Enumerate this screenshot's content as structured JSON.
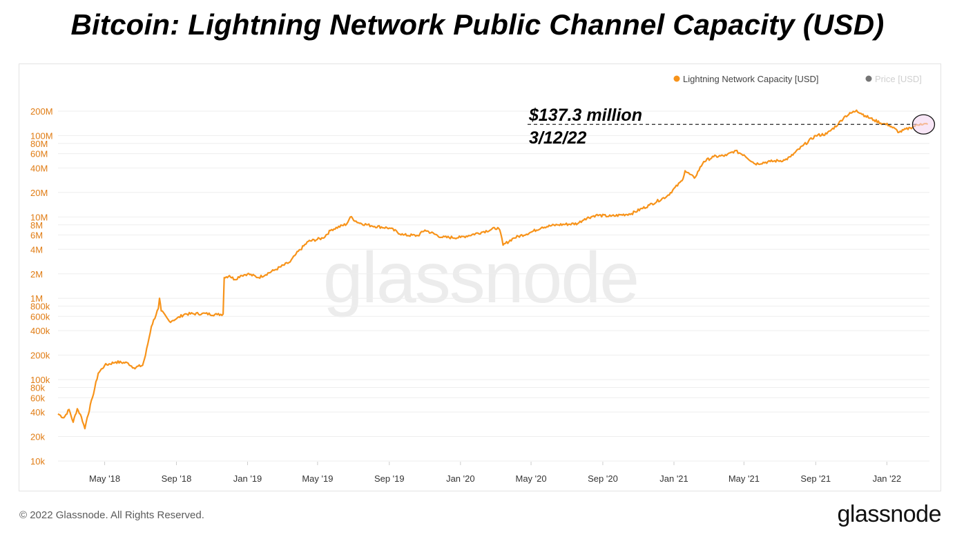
{
  "page": {
    "title": "Bitcoin: Lightning Network Public Channel Capacity (USD)",
    "copyright": "© 2022 Glassnode. All Rights Reserved.",
    "brand": "glassnode",
    "watermark": "glassnode"
  },
  "legend": {
    "items": [
      {
        "label": "Lightning Network Capacity [USD]",
        "color": "#f7931a",
        "active": true
      },
      {
        "label": "Price [USD]",
        "color": "#757575",
        "active": false
      }
    ]
  },
  "annotation": {
    "value_label": "$137.3 million",
    "date_label": "3/12/22",
    "value": 137300000,
    "date": "2022-03-12"
  },
  "colors": {
    "series": "#f7931a",
    "axis_text": "#e07b12",
    "x_axis_text": "#333333",
    "grid": "#eeeeee",
    "highlight_fill": "#f3d6f0"
  },
  "chart_data": {
    "type": "line",
    "title": "Bitcoin: Lightning Network Public Channel Capacity (USD)",
    "yscale": "log",
    "ylim": [
      10000,
      200000000
    ],
    "xlim": [
      "2018-02-10",
      "2022-03-15"
    ],
    "y_ticks": [
      {
        "v": 200000000,
        "label": "200M"
      },
      {
        "v": 100000000,
        "label": "100M"
      },
      {
        "v": 80000000,
        "label": "80M"
      },
      {
        "v": 60000000,
        "label": "60M"
      },
      {
        "v": 40000000,
        "label": "40M"
      },
      {
        "v": 20000000,
        "label": "20M"
      },
      {
        "v": 10000000,
        "label": "10M"
      },
      {
        "v": 8000000,
        "label": "8M"
      },
      {
        "v": 6000000,
        "label": "6M"
      },
      {
        "v": 4000000,
        "label": "4M"
      },
      {
        "v": 2000000,
        "label": "2M"
      },
      {
        "v": 1000000,
        "label": "1M"
      },
      {
        "v": 800000,
        "label": "800k"
      },
      {
        "v": 600000,
        "label": "600k"
      },
      {
        "v": 400000,
        "label": "400k"
      },
      {
        "v": 200000,
        "label": "200k"
      },
      {
        "v": 100000,
        "label": "100k"
      },
      {
        "v": 80000,
        "label": "80k"
      },
      {
        "v": 60000,
        "label": "60k"
      },
      {
        "v": 40000,
        "label": "40k"
      },
      {
        "v": 20000,
        "label": "20k"
      },
      {
        "v": 10000,
        "label": "10k"
      }
    ],
    "x_ticks": [
      {
        "date": "2018-05-01",
        "label": "May '18"
      },
      {
        "date": "2018-09-01",
        "label": "Sep '18"
      },
      {
        "date": "2019-01-01",
        "label": "Jan '19"
      },
      {
        "date": "2019-05-01",
        "label": "May '19"
      },
      {
        "date": "2019-09-01",
        "label": "Sep '19"
      },
      {
        "date": "2020-01-01",
        "label": "Jan '20"
      },
      {
        "date": "2020-05-01",
        "label": "May '20"
      },
      {
        "date": "2020-09-01",
        "label": "Sep '20"
      },
      {
        "date": "2021-01-01",
        "label": "Jan '21"
      },
      {
        "date": "2021-05-01",
        "label": "May '21"
      },
      {
        "date": "2021-09-01",
        "label": "Sep '21"
      },
      {
        "date": "2022-01-01",
        "label": "Jan '22"
      }
    ],
    "series": [
      {
        "name": "Lightning Network Capacity [USD]",
        "points": [
          [
            "2018-02-10",
            38000
          ],
          [
            "2018-02-20",
            34000
          ],
          [
            "2018-03-01",
            43000
          ],
          [
            "2018-03-08",
            30000
          ],
          [
            "2018-03-15",
            44000
          ],
          [
            "2018-03-22",
            35000
          ],
          [
            "2018-03-28",
            25000
          ],
          [
            "2018-04-01",
            34000
          ],
          [
            "2018-04-10",
            60000
          ],
          [
            "2018-04-20",
            120000
          ],
          [
            "2018-05-01",
            150000
          ],
          [
            "2018-05-20",
            165000
          ],
          [
            "2018-06-10",
            160000
          ],
          [
            "2018-06-20",
            140000
          ],
          [
            "2018-07-05",
            150000
          ],
          [
            "2018-07-10",
            200000
          ],
          [
            "2018-07-20",
            450000
          ],
          [
            "2018-08-01",
            750000
          ],
          [
            "2018-08-03",
            1000000
          ],
          [
            "2018-08-06",
            700000
          ],
          [
            "2018-08-20",
            520000
          ],
          [
            "2018-09-01",
            560000
          ],
          [
            "2018-09-15",
            640000
          ],
          [
            "2018-10-15",
            650000
          ],
          [
            "2018-11-10",
            630000
          ],
          [
            "2018-11-20",
            640000
          ],
          [
            "2018-11-22",
            1800000
          ],
          [
            "2018-12-01",
            1900000
          ],
          [
            "2018-12-10",
            1700000
          ],
          [
            "2018-12-20",
            1900000
          ],
          [
            "2019-01-01",
            2000000
          ],
          [
            "2019-01-20",
            1800000
          ],
          [
            "2019-02-15",
            2200000
          ],
          [
            "2019-03-15",
            2800000
          ],
          [
            "2019-03-25",
            3500000
          ],
          [
            "2019-04-15",
            5000000
          ],
          [
            "2019-05-10",
            5500000
          ],
          [
            "2019-05-25",
            7000000
          ],
          [
            "2019-06-20",
            8200000
          ],
          [
            "2019-06-26",
            10000000
          ],
          [
            "2019-07-10",
            8500000
          ],
          [
            "2019-08-01",
            7800000
          ],
          [
            "2019-09-01",
            7300000
          ],
          [
            "2019-09-25",
            6000000
          ],
          [
            "2019-10-20",
            5900000
          ],
          [
            "2019-11-01",
            6900000
          ],
          [
            "2019-12-01",
            5600000
          ],
          [
            "2020-01-01",
            5600000
          ],
          [
            "2020-02-10",
            6600000
          ],
          [
            "2020-03-05",
            7400000
          ],
          [
            "2020-03-10",
            6300000
          ],
          [
            "2020-03-14",
            4500000
          ],
          [
            "2020-04-01",
            5500000
          ],
          [
            "2020-05-01",
            6500000
          ],
          [
            "2020-05-20",
            7500000
          ],
          [
            "2020-06-15",
            8000000
          ],
          [
            "2020-07-20",
            8300000
          ],
          [
            "2020-08-01",
            9500000
          ],
          [
            "2020-08-20",
            10500000
          ],
          [
            "2020-09-15",
            10200000
          ],
          [
            "2020-10-20",
            11000000
          ],
          [
            "2020-11-20",
            14000000
          ],
          [
            "2020-12-20",
            18000000
          ],
          [
            "2021-01-15",
            28000000
          ],
          [
            "2021-01-20",
            37000000
          ],
          [
            "2021-02-05",
            30000000
          ],
          [
            "2021-02-21",
            48000000
          ],
          [
            "2021-03-10",
            55000000
          ],
          [
            "2021-04-01",
            57000000
          ],
          [
            "2021-04-15",
            65000000
          ],
          [
            "2021-05-01",
            58000000
          ],
          [
            "2021-05-20",
            45000000
          ],
          [
            "2021-06-15",
            48000000
          ],
          [
            "2021-07-10",
            50000000
          ],
          [
            "2021-07-20",
            55000000
          ],
          [
            "2021-08-10",
            75000000
          ],
          [
            "2021-09-01",
            100000000
          ],
          [
            "2021-09-20",
            105000000
          ],
          [
            "2021-10-10",
            140000000
          ],
          [
            "2021-10-20",
            170000000
          ],
          [
            "2021-11-10",
            205000000
          ],
          [
            "2021-11-25",
            175000000
          ],
          [
            "2021-12-10",
            155000000
          ],
          [
            "2021-12-25",
            140000000
          ],
          [
            "2022-01-05",
            135000000
          ],
          [
            "2022-01-22",
            110000000
          ],
          [
            "2022-02-10",
            125000000
          ],
          [
            "2022-02-28",
            140000000
          ],
          [
            "2022-03-12",
            137300000
          ]
        ]
      }
    ]
  }
}
